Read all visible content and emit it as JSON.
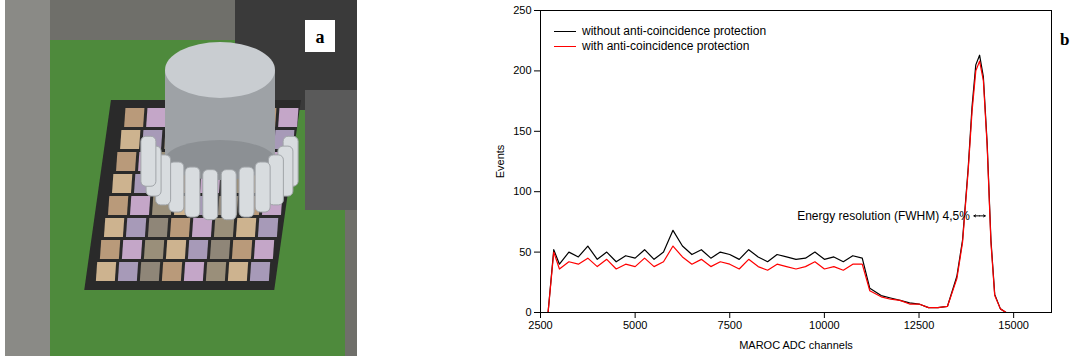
{
  "panel_labels": [
    "a",
    "b"
  ],
  "chart_data": {
    "type": "line",
    "x_label": "MAROC ADC channels",
    "y_label": "Events",
    "x": [
      2700,
      2850,
      3000,
      3250,
      3500,
      3750,
      4000,
      4250,
      4500,
      4750,
      5000,
      5250,
      5500,
      5750,
      6000,
      6250,
      6500,
      6750,
      7000,
      7250,
      7500,
      7750,
      8000,
      8250,
      8500,
      8750,
      9000,
      9250,
      9500,
      9750,
      10000,
      10250,
      10500,
      10750,
      11000,
      11200,
      11500,
      11750,
      12000,
      12250,
      12500,
      12750,
      13000,
      13250,
      13500,
      13650,
      13800,
      13900,
      14000,
      14100,
      14200,
      14300,
      14400,
      14500,
      14650,
      14800,
      15000,
      15200
    ],
    "series": [
      {
        "name": "without anti-coincidence protection",
        "color": "#000000",
        "values": [
          0,
          52,
          40,
          50,
          46,
          55,
          44,
          50,
          42,
          47,
          45,
          52,
          44,
          50,
          68,
          55,
          48,
          52,
          45,
          50,
          48,
          44,
          52,
          46,
          42,
          48,
          46,
          44,
          45,
          50,
          44,
          46,
          42,
          47,
          45,
          20,
          14,
          12,
          10,
          8,
          7,
          4,
          4,
          5,
          30,
          60,
          120,
          170,
          205,
          213,
          195,
          140,
          60,
          15,
          3,
          0,
          0,
          0
        ]
      },
      {
        "name": "with anti-coincidence protection",
        "color": "#ff0000",
        "values": [
          0,
          50,
          36,
          42,
          40,
          45,
          38,
          44,
          36,
          40,
          38,
          45,
          38,
          42,
          55,
          46,
          40,
          44,
          38,
          42,
          40,
          36,
          44,
          38,
          35,
          40,
          38,
          36,
          38,
          42,
          36,
          38,
          35,
          40,
          40,
          18,
          13,
          11,
          10,
          7,
          7,
          4,
          4,
          5,
          28,
          58,
          118,
          166,
          200,
          208,
          192,
          138,
          58,
          14,
          3,
          0,
          0,
          0
        ]
      }
    ],
    "xlim": [
      2500,
      16000
    ],
    "xticks": [
      2500,
      5000,
      7500,
      10000,
      12500,
      15000
    ],
    "ylim": [
      0,
      250
    ],
    "yticks": [
      0,
      50,
      100,
      150,
      200,
      250
    ],
    "legend": "upper left",
    "annotation": {
      "text": "Energy resolution (FWHM) 4,5%",
      "x": [
        13950,
        14250
      ],
      "y": 80
    }
  }
}
